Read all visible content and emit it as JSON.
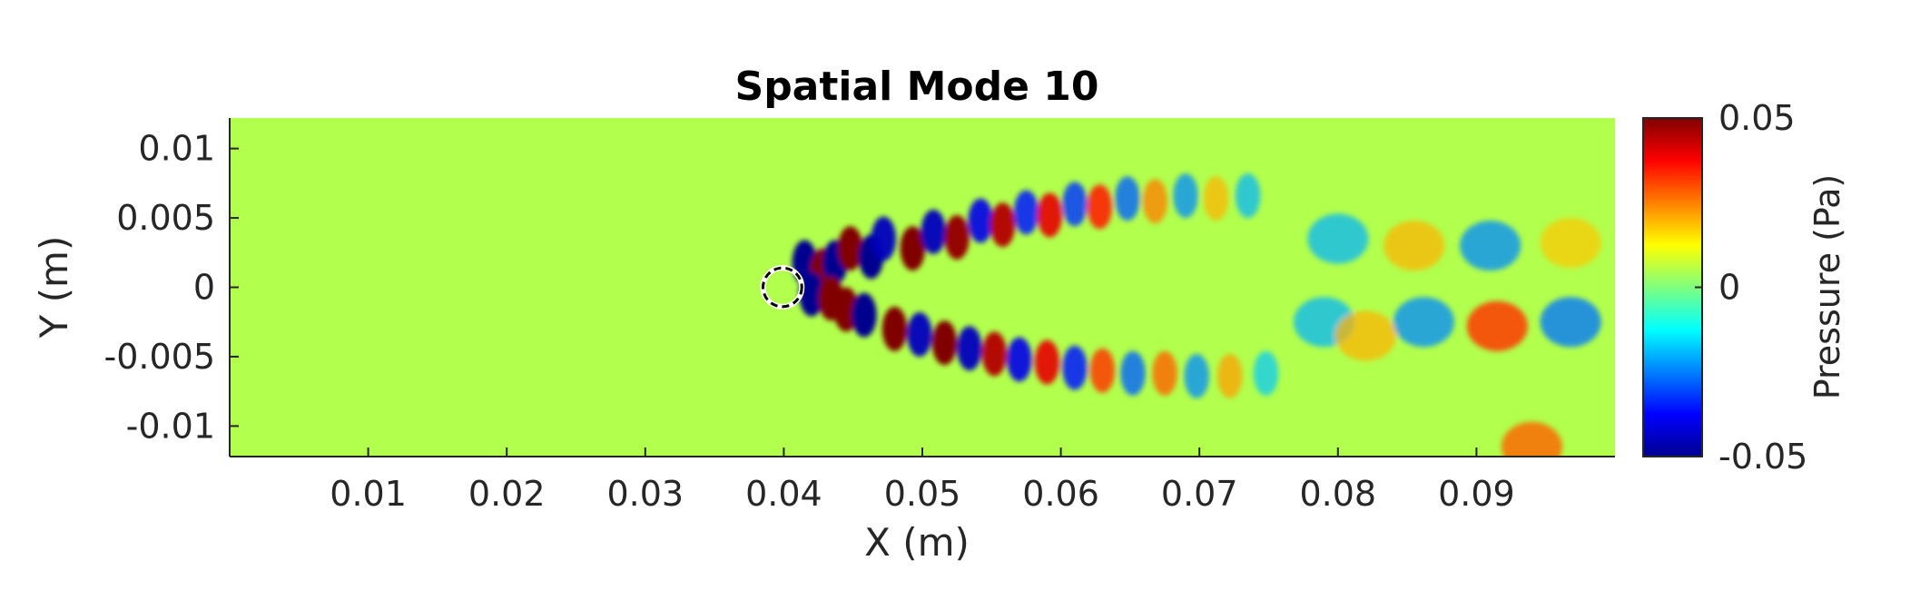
{
  "chart_data": {
    "type": "heatmap",
    "title": "Spatial Mode 10",
    "xlabel": "X (m)",
    "ylabel": "Y (m)",
    "xlim": [
      0,
      0.1
    ],
    "ylim": [
      -0.0122,
      0.0122
    ],
    "x_ticks": [
      0.01,
      0.02,
      0.03,
      0.04,
      0.05,
      0.06,
      0.07,
      0.08,
      0.09
    ],
    "x_tick_labels": [
      "0.01",
      "0.02",
      "0.03",
      "0.04",
      "0.05",
      "0.06",
      "0.07",
      "0.08",
      "0.09"
    ],
    "y_ticks": [
      0.01,
      0.005,
      0,
      -0.005,
      -0.01
    ],
    "y_tick_labels": [
      "0.01",
      "0.005",
      "0",
      "-0.005",
      "-0.01"
    ],
    "colorbar": {
      "label": "Pressure (Pa)",
      "colormap": "jet",
      "clim": [
        -0.05,
        0.05
      ],
      "ticks": [
        0.05,
        0,
        -0.05
      ],
      "tick_labels": [
        "0.05",
        "0",
        "-0.05"
      ]
    },
    "background_value": 0.005,
    "cylinder": {
      "x": 0.0399,
      "y": 0.0,
      "radius": 0.0014
    },
    "blobs": [
      {
        "x": 0.0415,
        "y": 0.0018,
        "v": -0.05
      },
      {
        "x": 0.0428,
        "y": 0.0012,
        "v": 0.05
      },
      {
        "x": 0.0437,
        "y": 0.0018,
        "v": -0.05
      },
      {
        "x": 0.0448,
        "y": 0.0028,
        "v": 0.05
      },
      {
        "x": 0.0463,
        "y": 0.0022,
        "v": -0.05
      },
      {
        "x": 0.042,
        "y": -0.0005,
        "v": -0.05
      },
      {
        "x": 0.0434,
        "y": -0.0008,
        "v": 0.05
      },
      {
        "x": 0.0445,
        "y": -0.0016,
        "v": 0.05
      },
      {
        "x": 0.0458,
        "y": -0.002,
        "v": -0.05
      },
      {
        "x": 0.0472,
        "y": 0.0035,
        "v": -0.045
      },
      {
        "x": 0.0493,
        "y": 0.0028,
        "v": 0.05
      },
      {
        "x": 0.0508,
        "y": 0.004,
        "v": -0.045
      },
      {
        "x": 0.0525,
        "y": 0.0036,
        "v": 0.048
      },
      {
        "x": 0.0542,
        "y": 0.0048,
        "v": -0.04
      },
      {
        "x": 0.0558,
        "y": 0.0045,
        "v": 0.045
      },
      {
        "x": 0.0575,
        "y": 0.0054,
        "v": -0.035
      },
      {
        "x": 0.0592,
        "y": 0.0052,
        "v": 0.04
      },
      {
        "x": 0.061,
        "y": 0.006,
        "v": -0.032
      },
      {
        "x": 0.0628,
        "y": 0.0058,
        "v": 0.035
      },
      {
        "x": 0.0648,
        "y": 0.0064,
        "v": -0.028
      },
      {
        "x": 0.0668,
        "y": 0.0062,
        "v": 0.025
      },
      {
        "x": 0.069,
        "y": 0.0066,
        "v": -0.024
      },
      {
        "x": 0.0712,
        "y": 0.0064,
        "v": 0.02
      },
      {
        "x": 0.0735,
        "y": 0.0066,
        "v": -0.02
      },
      {
        "x": 0.048,
        "y": -0.003,
        "v": 0.05
      },
      {
        "x": 0.0498,
        "y": -0.0034,
        "v": -0.045
      },
      {
        "x": 0.0516,
        "y": -0.004,
        "v": 0.05
      },
      {
        "x": 0.0534,
        "y": -0.0044,
        "v": -0.045
      },
      {
        "x": 0.0552,
        "y": -0.0048,
        "v": 0.045
      },
      {
        "x": 0.057,
        "y": -0.0052,
        "v": -0.04
      },
      {
        "x": 0.059,
        "y": -0.0054,
        "v": 0.04
      },
      {
        "x": 0.061,
        "y": -0.0058,
        "v": -0.035
      },
      {
        "x": 0.063,
        "y": -0.006,
        "v": 0.032
      },
      {
        "x": 0.0652,
        "y": -0.0062,
        "v": -0.028
      },
      {
        "x": 0.0675,
        "y": -0.0062,
        "v": 0.028
      },
      {
        "x": 0.0698,
        "y": -0.0064,
        "v": -0.024
      },
      {
        "x": 0.0722,
        "y": -0.0064,
        "v": 0.022
      },
      {
        "x": 0.0748,
        "y": -0.0062,
        "v": -0.018
      },
      {
        "x": 0.08,
        "y": 0.0035,
        "v": -0.02
      },
      {
        "x": 0.0855,
        "y": 0.003,
        "v": 0.02
      },
      {
        "x": 0.091,
        "y": 0.003,
        "v": -0.024
      },
      {
        "x": 0.0968,
        "y": 0.0032,
        "v": 0.018
      },
      {
        "x": 0.079,
        "y": -0.0025,
        "v": -0.02
      },
      {
        "x": 0.082,
        "y": -0.0035,
        "v": 0.02
      },
      {
        "x": 0.0862,
        "y": -0.0025,
        "v": -0.024
      },
      {
        "x": 0.0915,
        "y": -0.0028,
        "v": 0.032
      },
      {
        "x": 0.0968,
        "y": -0.0025,
        "v": -0.026
      },
      {
        "x": 0.094,
        "y": -0.0115,
        "v": 0.028
      }
    ]
  }
}
